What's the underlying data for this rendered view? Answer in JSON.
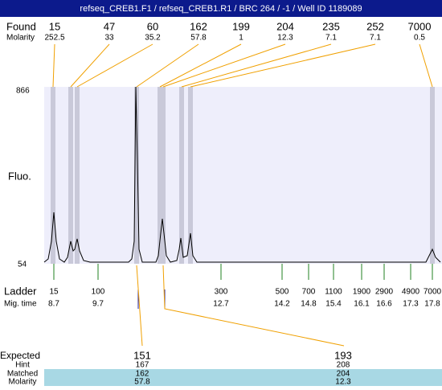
{
  "header": {
    "title": "refseq_CREB1.F1 / refseq_CREB1.R1 / BRC 264 / -1 / Well ID 1189089"
  },
  "found": {
    "label": "Found",
    "molarity_label": "Molarity",
    "peaks": [
      {
        "size": 15,
        "molarity": 252.5
      },
      {
        "size": 47,
        "molarity": 33
      },
      {
        "size": 60,
        "molarity": 35.2
      },
      {
        "size": 162,
        "molarity": 57.8
      },
      {
        "size": 199,
        "molarity": 1
      },
      {
        "size": 204,
        "molarity": 12.3
      },
      {
        "size": 235,
        "molarity": 7.1
      },
      {
        "size": 252,
        "molarity": 7.1
      },
      {
        "size": 7000,
        "molarity": 0.5
      }
    ]
  },
  "axis": {
    "label": "Fluo.",
    "max": 866,
    "min": 54
  },
  "ladder": {
    "label": "Ladder",
    "time_label": "Mig. time",
    "marks": [
      {
        "size": 15,
        "time": 8.7
      },
      {
        "size": 100,
        "time": 9.7
      },
      {
        "size": 300,
        "time": 12.7
      },
      {
        "size": 500,
        "time": 14.2
      },
      {
        "size": 700,
        "time": 14.8
      },
      {
        "size": 1100,
        "time": 15.4
      },
      {
        "size": 1900,
        "time": 16.1
      },
      {
        "size": 2900,
        "time": 16.6
      },
      {
        "size": 4900,
        "time": 17.3
      },
      {
        "size": 7000,
        "time": 17.8
      }
    ]
  },
  "expected": {
    "labels": [
      "Expected",
      "Hint",
      "Matched",
      "Molarity"
    ],
    "columns": [
      {
        "expected": 151,
        "hint": 167,
        "matched": 162,
        "molarity": 57.8
      },
      {
        "expected": 193,
        "hint": 208,
        "matched": 204,
        "molarity": 12.3
      }
    ]
  }
}
